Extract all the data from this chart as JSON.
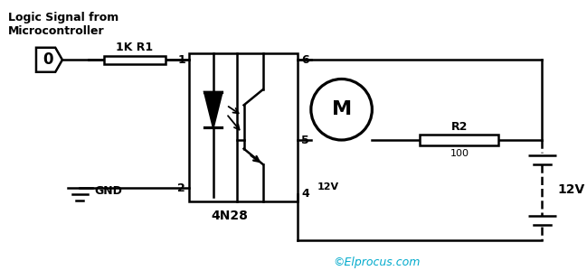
{
  "background_color": "#ffffff",
  "line_color": "#000000",
  "copyright_color": "#00aacc",
  "copyright_text": "©Elprocus.com",
  "label_logic": "Logic Signal from\nMicrocontroller",
  "label_1k_r1": "1K R1",
  "label_gnd": "GND",
  "label_4n28": "4N28",
  "label_r2": "R2",
  "label_r2_val": "100",
  "label_12v_bat": "12V",
  "label_12v_node": "12V",
  "label_M": "M",
  "pin1": "1",
  "pin2": "2",
  "pin4": "4",
  "pin5": "5",
  "pin6": "6",
  "label_0": "0"
}
